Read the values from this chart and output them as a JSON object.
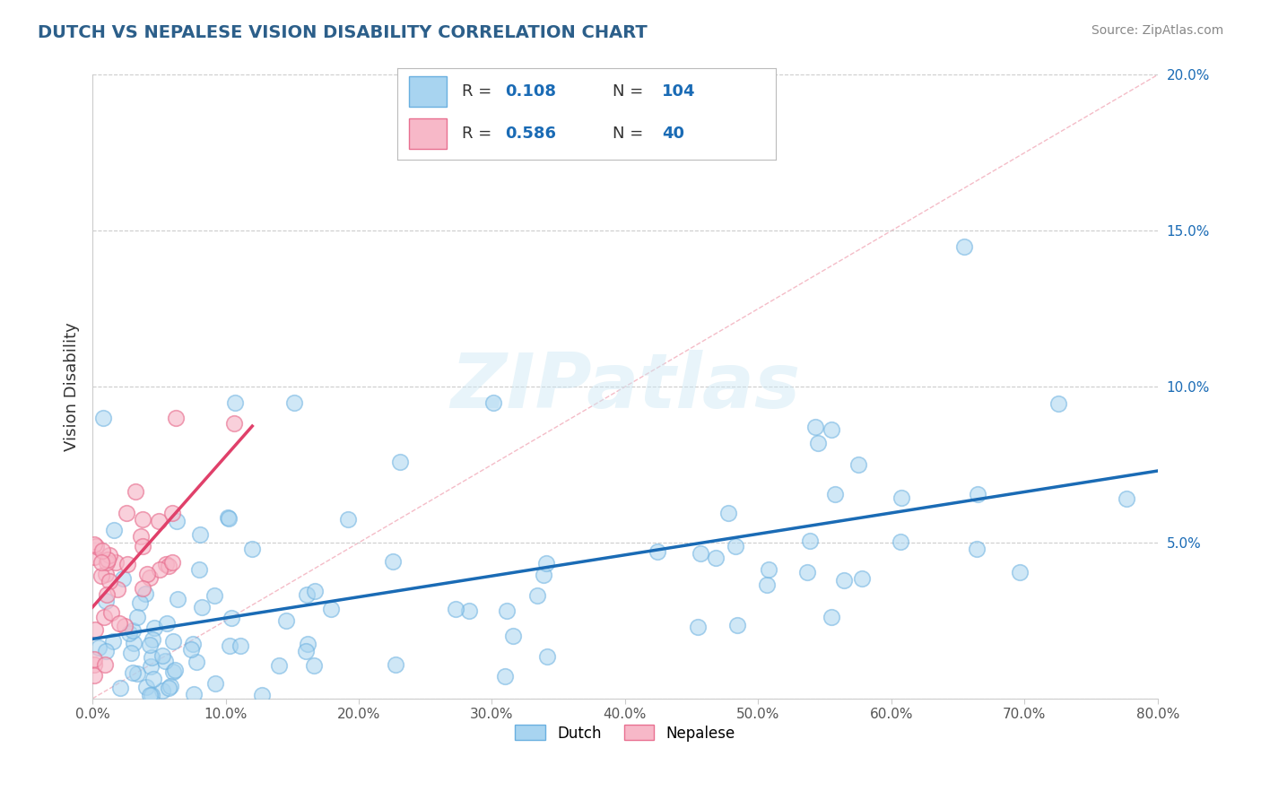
{
  "title": "DUTCH VS NEPALESE VISION DISABILITY CORRELATION CHART",
  "source_text": "Source: ZipAtlas.com",
  "ylabel": "Vision Disability",
  "watermark": "ZIPatlas",
  "xlim": [
    0.0,
    0.8
  ],
  "ylim": [
    0.0,
    0.2
  ],
  "xticks": [
    0.0,
    0.1,
    0.2,
    0.3,
    0.4,
    0.5,
    0.6,
    0.7,
    0.8
  ],
  "yticks": [
    0.0,
    0.05,
    0.1,
    0.15,
    0.2
  ],
  "xticklabels": [
    "0.0%",
    "10.0%",
    "20.0%",
    "30.0%",
    "40.0%",
    "50.0%",
    "60.0%",
    "70.0%",
    "80.0%"
  ],
  "yticklabels": [
    "",
    "5.0%",
    "10.0%",
    "15.0%",
    "20.0%"
  ],
  "dutch_R": 0.108,
  "dutch_N": 104,
  "nepalese_R": 0.586,
  "nepalese_N": 40,
  "dutch_color": "#a8d4f0",
  "dutch_edge_color": "#6ab0e0",
  "dutch_line_color": "#1a6bb5",
  "nepalese_color": "#f7b8c8",
  "nepalese_edge_color": "#e87090",
  "nepalese_line_color": "#e0406a",
  "diag_color": "#f0a0b0",
  "title_color": "#2c5f8a",
  "source_color": "#888888",
  "legend_label_color": "#333333",
  "legend_val_color": "#1a6bb5",
  "ytick_color": "#1a6bb5"
}
